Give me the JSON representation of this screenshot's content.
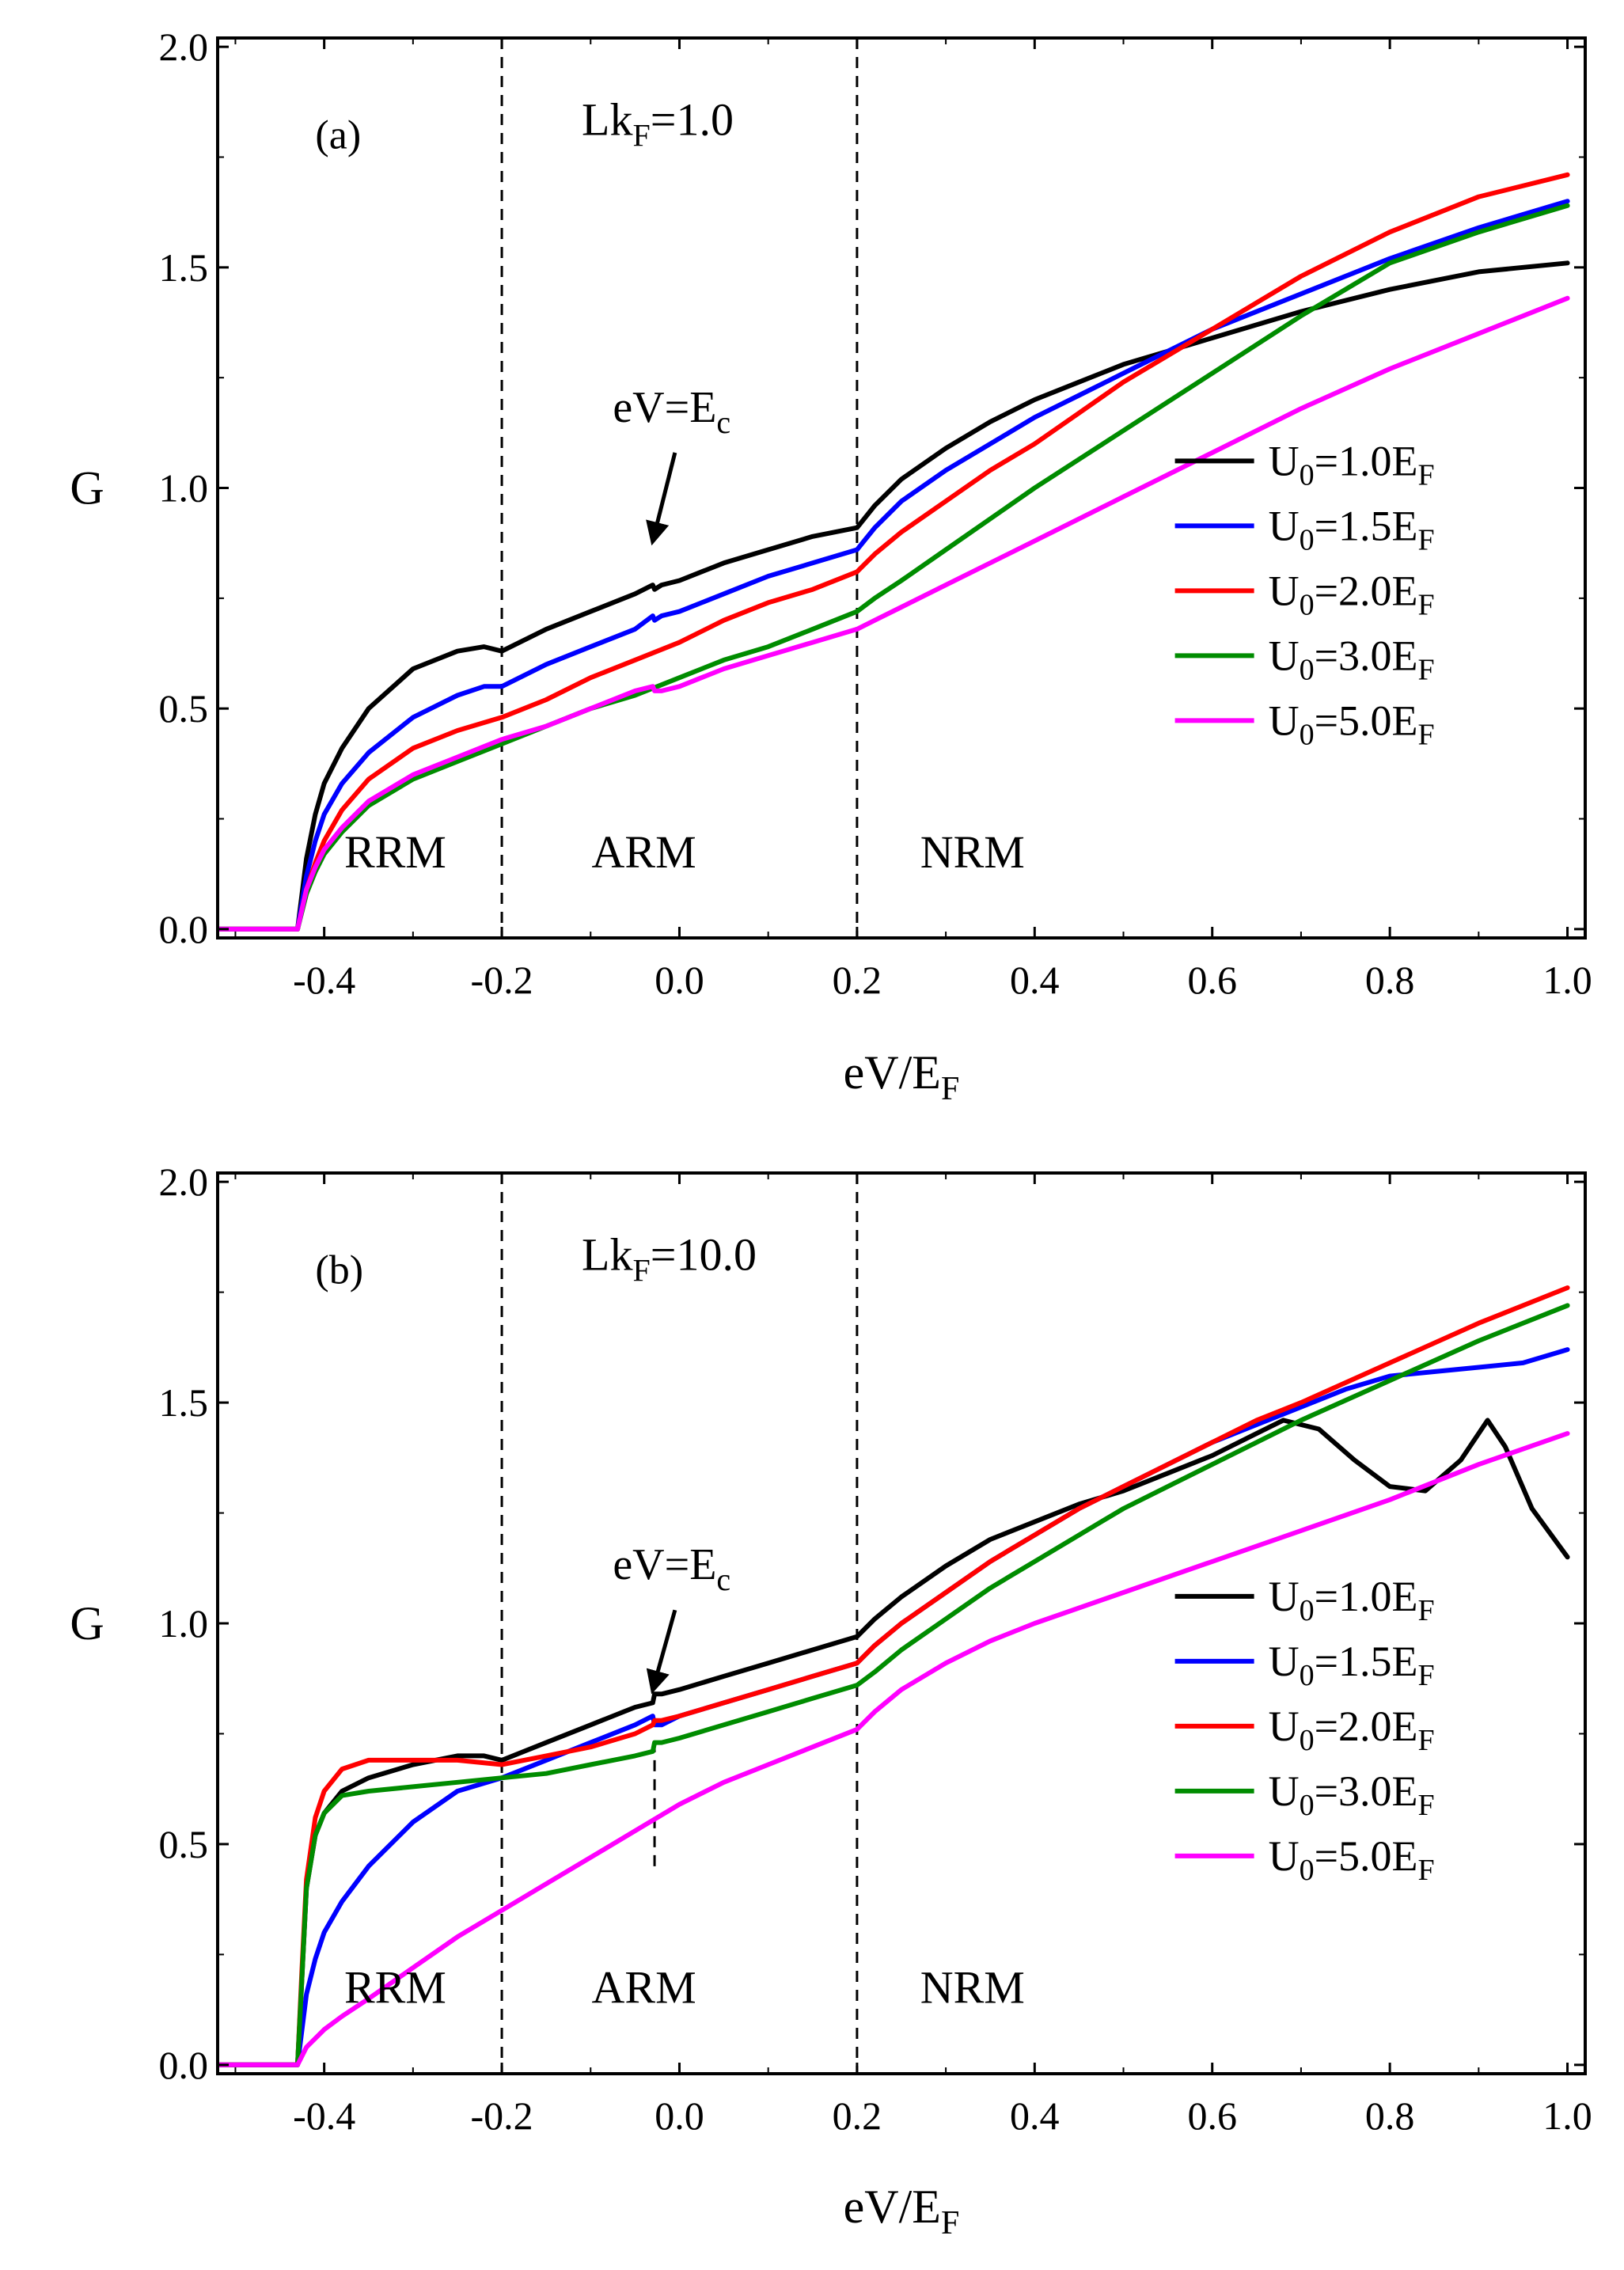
{
  "chart_data": [
    {
      "type": "line",
      "panel_label": "(a)",
      "parameter_label": {
        "base": "Lk",
        "sub": "F",
        "rest": "=1.0"
      },
      "xlabel": {
        "base": "eV/E",
        "sub": "F"
      },
      "ylabel": "G",
      "xlim": [
        -0.52,
        1.02
      ],
      "ylim": [
        -0.02,
        2.02
      ],
      "x_ticks": [
        -0.4,
        -0.2,
        0.0,
        0.2,
        0.4,
        0.6,
        0.8,
        1.0
      ],
      "x_tick_labels": [
        "-0.4",
        "-0.2",
        "0.0",
        "0.2",
        "0.4",
        "0.6",
        "0.8",
        "1.0"
      ],
      "y_ticks": [
        0.0,
        0.5,
        1.0,
        1.5,
        2.0
      ],
      "y_tick_labels": [
        "0.0",
        "0.5",
        "1.0",
        "1.5",
        "2.0"
      ],
      "vlines": [
        -0.2,
        0.2
      ],
      "regions": [
        {
          "label": "RRM",
          "x": -0.32,
          "y": 0.14
        },
        {
          "label": "ARM",
          "x": -0.04,
          "y": 0.14
        },
        {
          "label": "NRM",
          "x": 0.33,
          "y": 0.14
        }
      ],
      "annotation": {
        "base": "eV=E",
        "sub": "c",
        "text_x": -0.075,
        "text_y": 1.15,
        "arrow_from": [
          -0.005,
          1.08
        ],
        "arrow_to": [
          -0.03,
          0.88
        ]
      },
      "legend_position": "center-right",
      "series": [
        {
          "name": "U0=1.0EF",
          "label": {
            "base": "U",
            "sub1": "0",
            "mid": "=1.0E",
            "sub2": "F"
          },
          "color": "#000000",
          "x": [
            -0.52,
            -0.43,
            -0.42,
            -0.41,
            -0.4,
            -0.38,
            -0.35,
            -0.3,
            -0.25,
            -0.22,
            -0.2,
            -0.15,
            -0.1,
            -0.05,
            -0.03,
            -0.028,
            -0.02,
            0.0,
            0.05,
            0.1,
            0.15,
            0.2,
            0.22,
            0.25,
            0.3,
            0.35,
            0.4,
            0.45,
            0.5,
            0.55,
            0.6,
            0.7,
            0.8,
            0.9,
            1.0
          ],
          "y": [
            0.0,
            0.0,
            0.16,
            0.26,
            0.33,
            0.41,
            0.5,
            0.59,
            0.63,
            0.64,
            0.63,
            0.68,
            0.72,
            0.76,
            0.78,
            0.77,
            0.78,
            0.79,
            0.83,
            0.86,
            0.89,
            0.91,
            0.96,
            1.02,
            1.09,
            1.15,
            1.2,
            1.24,
            1.28,
            1.31,
            1.34,
            1.4,
            1.45,
            1.49,
            1.51
          ]
        },
        {
          "name": "U0=1.5EF",
          "label": {
            "base": "U",
            "sub1": "0",
            "mid": "=1.5E",
            "sub2": "F"
          },
          "color": "#0000ff",
          "x": [
            -0.52,
            -0.43,
            -0.42,
            -0.41,
            -0.4,
            -0.38,
            -0.35,
            -0.3,
            -0.25,
            -0.22,
            -0.2,
            -0.15,
            -0.1,
            -0.05,
            -0.03,
            -0.028,
            -0.02,
            0.0,
            0.05,
            0.1,
            0.15,
            0.2,
            0.22,
            0.25,
            0.3,
            0.35,
            0.4,
            0.45,
            0.5,
            0.55,
            0.6,
            0.7,
            0.8,
            0.9,
            1.0
          ],
          "y": [
            0.0,
            0.0,
            0.12,
            0.2,
            0.26,
            0.33,
            0.4,
            0.48,
            0.53,
            0.55,
            0.55,
            0.6,
            0.64,
            0.68,
            0.71,
            0.7,
            0.71,
            0.72,
            0.76,
            0.8,
            0.83,
            0.86,
            0.91,
            0.97,
            1.04,
            1.1,
            1.16,
            1.21,
            1.26,
            1.31,
            1.36,
            1.44,
            1.52,
            1.59,
            1.65
          ]
        },
        {
          "name": "U0=2.0EF",
          "label": {
            "base": "U",
            "sub1": "0",
            "mid": "=2.0E",
            "sub2": "F"
          },
          "color": "#ff0000",
          "x": [
            -0.52,
            -0.43,
            -0.42,
            -0.41,
            -0.4,
            -0.38,
            -0.35,
            -0.3,
            -0.25,
            -0.2,
            -0.15,
            -0.1,
            -0.05,
            0.0,
            0.05,
            0.1,
            0.15,
            0.2,
            0.22,
            0.25,
            0.3,
            0.35,
            0.4,
            0.45,
            0.5,
            0.55,
            0.6,
            0.7,
            0.8,
            0.9,
            1.0
          ],
          "y": [
            0.0,
            0.0,
            0.09,
            0.15,
            0.2,
            0.27,
            0.34,
            0.41,
            0.45,
            0.48,
            0.52,
            0.57,
            0.61,
            0.65,
            0.7,
            0.74,
            0.77,
            0.81,
            0.85,
            0.9,
            0.97,
            1.04,
            1.1,
            1.17,
            1.24,
            1.3,
            1.36,
            1.48,
            1.58,
            1.66,
            1.71
          ]
        },
        {
          "name": "U0=3.0EF",
          "label": {
            "base": "U",
            "sub1": "0",
            "mid": "=3.0E",
            "sub2": "F"
          },
          "color": "#008c00",
          "x": [
            -0.52,
            -0.43,
            -0.42,
            -0.41,
            -0.4,
            -0.38,
            -0.35,
            -0.3,
            -0.25,
            -0.2,
            -0.15,
            -0.1,
            -0.05,
            0.0,
            0.05,
            0.1,
            0.15,
            0.2,
            0.22,
            0.25,
            0.3,
            0.4,
            0.5,
            0.6,
            0.7,
            0.8,
            0.9,
            1.0
          ],
          "y": [
            0.0,
            0.0,
            0.08,
            0.13,
            0.17,
            0.22,
            0.28,
            0.34,
            0.38,
            0.42,
            0.46,
            0.5,
            0.53,
            0.57,
            0.61,
            0.64,
            0.68,
            0.72,
            0.75,
            0.79,
            0.86,
            1.0,
            1.13,
            1.26,
            1.39,
            1.51,
            1.58,
            1.64
          ]
        },
        {
          "name": "U0=5.0EF",
          "label": {
            "base": "U",
            "sub1": "0",
            "mid": "=5.0E",
            "sub2": "F"
          },
          "color": "#ff00ff",
          "x": [
            -0.52,
            -0.43,
            -0.42,
            -0.41,
            -0.4,
            -0.38,
            -0.35,
            -0.3,
            -0.25,
            -0.2,
            -0.15,
            -0.1,
            -0.05,
            -0.03,
            -0.028,
            -0.02,
            0.0,
            0.05,
            0.1,
            0.15,
            0.2,
            0.22,
            0.25,
            0.3,
            0.4,
            0.5,
            0.6,
            0.7,
            0.8,
            0.9,
            1.0
          ],
          "y": [
            0.0,
            0.0,
            0.09,
            0.14,
            0.18,
            0.23,
            0.29,
            0.35,
            0.39,
            0.43,
            0.46,
            0.5,
            0.54,
            0.55,
            0.54,
            0.54,
            0.55,
            0.59,
            0.62,
            0.65,
            0.68,
            0.7,
            0.73,
            0.78,
            0.88,
            0.98,
            1.08,
            1.18,
            1.27,
            1.35,
            1.43
          ]
        }
      ]
    },
    {
      "type": "line",
      "panel_label": "(b)",
      "parameter_label": {
        "base": "Lk",
        "sub": "F",
        "rest": "=10.0"
      },
      "xlabel": {
        "base": "eV/E",
        "sub": "F"
      },
      "ylabel": "G",
      "xlim": [
        -0.52,
        1.02
      ],
      "ylim": [
        -0.02,
        2.02
      ],
      "x_ticks": [
        -0.4,
        -0.2,
        0.0,
        0.2,
        0.4,
        0.6,
        0.8,
        1.0
      ],
      "x_tick_labels": [
        "-0.4",
        "-0.2",
        "0.0",
        "0.2",
        "0.4",
        "0.6",
        "0.8",
        "1.0"
      ],
      "y_ticks": [
        0.0,
        0.5,
        1.0,
        1.5,
        2.0
      ],
      "y_tick_labels": [
        "0.0",
        "0.5",
        "1.0",
        "1.5",
        "2.0"
      ],
      "vlines": [
        -0.2,
        0.2
      ],
      "short_vline": {
        "x": -0.028,
        "y1": 0.45,
        "y2": 0.72
      },
      "regions": [
        {
          "label": "RRM",
          "x": -0.32,
          "y": 0.14
        },
        {
          "label": "ARM",
          "x": -0.04,
          "y": 0.14
        },
        {
          "label": "NRM",
          "x": 0.33,
          "y": 0.14
        }
      ],
      "annotation": {
        "base": "eV=E",
        "sub": "c",
        "text_x": -0.075,
        "text_y": 1.1,
        "arrow_from": [
          -0.005,
          1.03
        ],
        "arrow_to": [
          -0.03,
          0.85
        ]
      },
      "legend_position": "center-right",
      "series": [
        {
          "name": "U0=1.0EF",
          "label": {
            "base": "U",
            "sub1": "0",
            "mid": "=1.0E",
            "sub2": "F"
          },
          "color": "#000000",
          "x": [
            -0.52,
            -0.43,
            -0.425,
            -0.42,
            -0.41,
            -0.4,
            -0.38,
            -0.35,
            -0.3,
            -0.25,
            -0.22,
            -0.2,
            -0.15,
            -0.1,
            -0.05,
            -0.03,
            -0.028,
            -0.02,
            0.0,
            0.05,
            0.1,
            0.15,
            0.2,
            0.22,
            0.25,
            0.3,
            0.35,
            0.4,
            0.45,
            0.5,
            0.55,
            0.6,
            0.65,
            0.68,
            0.72,
            0.76,
            0.8,
            0.84,
            0.88,
            0.91,
            0.93,
            0.96,
            1.0
          ],
          "y": [
            0.0,
            0.0,
            0.2,
            0.4,
            0.52,
            0.57,
            0.62,
            0.65,
            0.68,
            0.7,
            0.7,
            0.69,
            0.73,
            0.77,
            0.81,
            0.82,
            0.84,
            0.84,
            0.85,
            0.88,
            0.91,
            0.94,
            0.97,
            1.01,
            1.06,
            1.13,
            1.19,
            1.23,
            1.27,
            1.3,
            1.34,
            1.38,
            1.43,
            1.46,
            1.44,
            1.37,
            1.31,
            1.3,
            1.37,
            1.46,
            1.4,
            1.26,
            1.15
          ]
        },
        {
          "name": "U0=1.5EF",
          "label": {
            "base": "U",
            "sub1": "0",
            "mid": "=1.5E",
            "sub2": "F"
          },
          "color": "#0000ff",
          "x": [
            -0.52,
            -0.43,
            -0.42,
            -0.41,
            -0.4,
            -0.38,
            -0.35,
            -0.3,
            -0.25,
            -0.2,
            -0.15,
            -0.1,
            -0.05,
            -0.03,
            -0.028,
            -0.02,
            0.0,
            0.05,
            0.1,
            0.15,
            0.2,
            0.22,
            0.25,
            0.3,
            0.35,
            0.4,
            0.45,
            0.5,
            0.55,
            0.6,
            0.65,
            0.7,
            0.75,
            0.8,
            0.85,
            0.9,
            0.95,
            1.0
          ],
          "y": [
            0.0,
            0.0,
            0.16,
            0.24,
            0.3,
            0.37,
            0.45,
            0.55,
            0.62,
            0.65,
            0.69,
            0.73,
            0.77,
            0.79,
            0.77,
            0.77,
            0.79,
            0.82,
            0.85,
            0.88,
            0.91,
            0.95,
            1.0,
            1.07,
            1.14,
            1.2,
            1.26,
            1.31,
            1.36,
            1.41,
            1.45,
            1.49,
            1.53,
            1.56,
            1.57,
            1.58,
            1.59,
            1.62
          ]
        },
        {
          "name": "U0=2.0EF",
          "label": {
            "base": "U",
            "sub1": "0",
            "mid": "=2.0E",
            "sub2": "F"
          },
          "color": "#ff0000",
          "x": [
            -0.52,
            -0.43,
            -0.425,
            -0.42,
            -0.41,
            -0.4,
            -0.38,
            -0.35,
            -0.3,
            -0.25,
            -0.2,
            -0.15,
            -0.1,
            -0.05,
            -0.03,
            -0.028,
            -0.02,
            0.0,
            0.05,
            0.1,
            0.15,
            0.2,
            0.22,
            0.25,
            0.3,
            0.35,
            0.4,
            0.45,
            0.5,
            0.55,
            0.6,
            0.65,
            0.7,
            0.8,
            0.9,
            1.0
          ],
          "y": [
            0.0,
            0.0,
            0.22,
            0.42,
            0.56,
            0.62,
            0.67,
            0.69,
            0.69,
            0.69,
            0.68,
            0.7,
            0.72,
            0.75,
            0.77,
            0.78,
            0.78,
            0.79,
            0.82,
            0.85,
            0.88,
            0.91,
            0.95,
            1.0,
            1.07,
            1.14,
            1.2,
            1.26,
            1.31,
            1.36,
            1.41,
            1.46,
            1.5,
            1.59,
            1.68,
            1.76
          ]
        },
        {
          "name": "U0=3.0EF",
          "label": {
            "base": "U",
            "sub1": "0",
            "mid": "=3.0E",
            "sub2": "F"
          },
          "color": "#008c00",
          "x": [
            -0.52,
            -0.43,
            -0.425,
            -0.42,
            -0.41,
            -0.4,
            -0.38,
            -0.35,
            -0.3,
            -0.25,
            -0.2,
            -0.15,
            -0.1,
            -0.05,
            -0.03,
            -0.028,
            -0.02,
            0.0,
            0.05,
            0.1,
            0.15,
            0.2,
            0.22,
            0.25,
            0.3,
            0.35,
            0.4,
            0.45,
            0.5,
            0.55,
            0.6,
            0.7,
            0.8,
            0.9,
            1.0
          ],
          "y": [
            0.0,
            0.0,
            0.2,
            0.4,
            0.52,
            0.57,
            0.61,
            0.62,
            0.63,
            0.64,
            0.65,
            0.66,
            0.68,
            0.7,
            0.71,
            0.73,
            0.73,
            0.74,
            0.77,
            0.8,
            0.83,
            0.86,
            0.89,
            0.94,
            1.01,
            1.08,
            1.14,
            1.2,
            1.26,
            1.31,
            1.36,
            1.46,
            1.55,
            1.64,
            1.72
          ]
        },
        {
          "name": "U0=5.0EF",
          "label": {
            "base": "U",
            "sub1": "0",
            "mid": "=5.0E",
            "sub2": "F"
          },
          "color": "#ff00ff",
          "x": [
            -0.52,
            -0.43,
            -0.42,
            -0.41,
            -0.4,
            -0.38,
            -0.35,
            -0.3,
            -0.25,
            -0.2,
            -0.15,
            -0.1,
            -0.05,
            0.0,
            0.05,
            0.1,
            0.15,
            0.2,
            0.22,
            0.25,
            0.3,
            0.35,
            0.4,
            0.5,
            0.6,
            0.7,
            0.8,
            0.9,
            1.0
          ],
          "y": [
            0.0,
            0.0,
            0.04,
            0.06,
            0.08,
            0.11,
            0.15,
            0.22,
            0.29,
            0.35,
            0.41,
            0.47,
            0.53,
            0.59,
            0.64,
            0.68,
            0.72,
            0.76,
            0.8,
            0.85,
            0.91,
            0.96,
            1.0,
            1.07,
            1.14,
            1.21,
            1.28,
            1.36,
            1.43
          ]
        }
      ]
    }
  ]
}
